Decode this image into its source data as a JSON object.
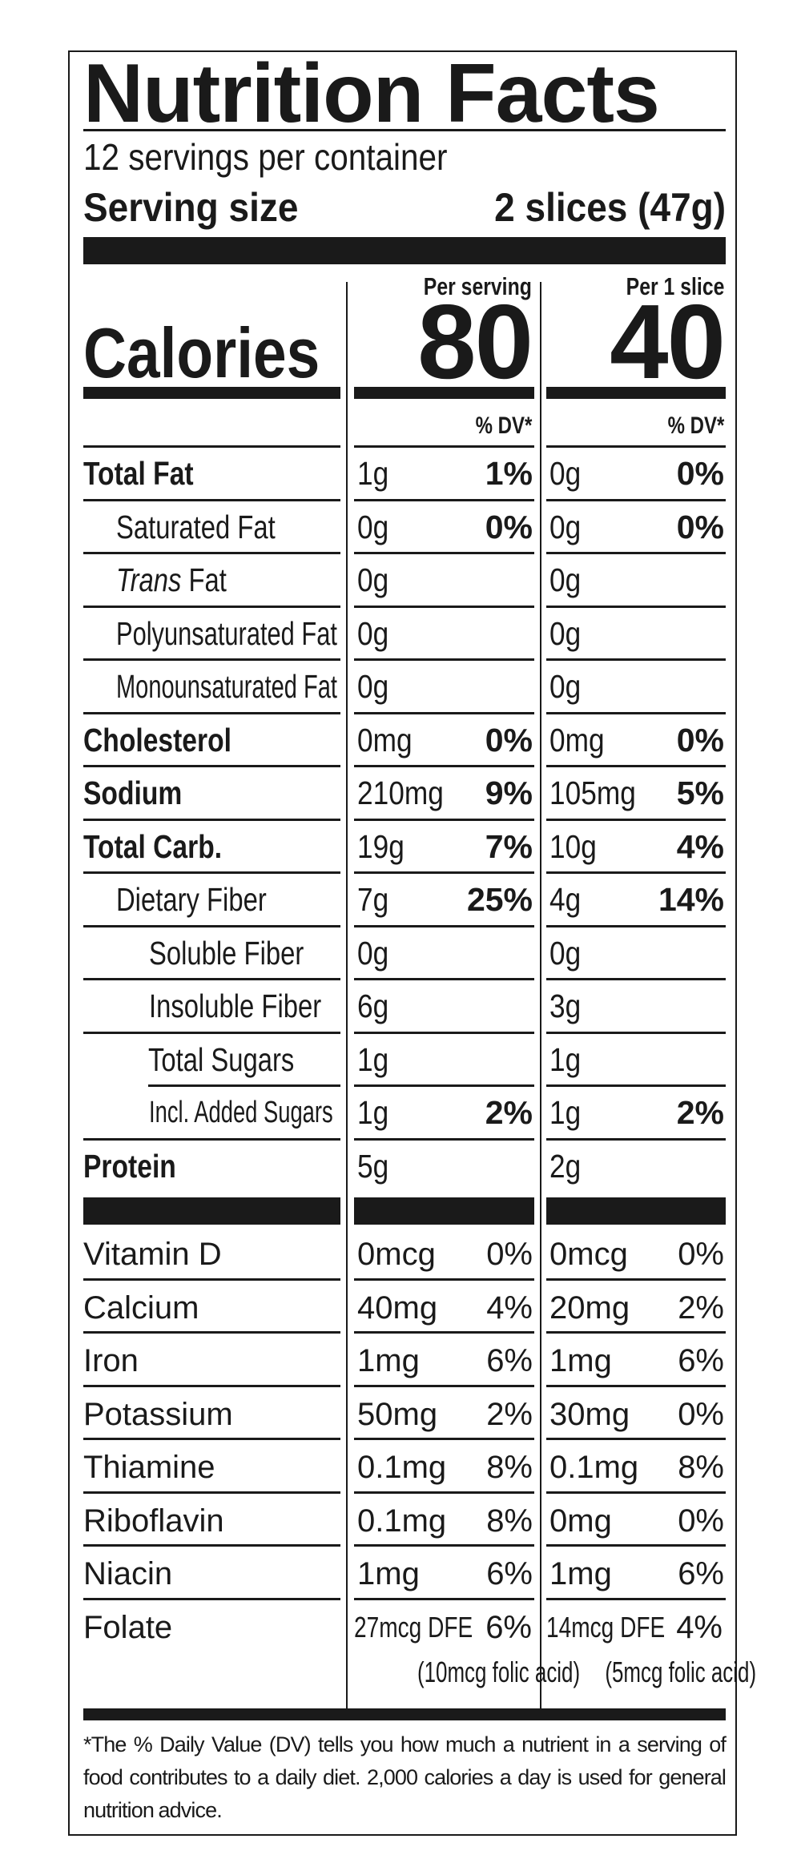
{
  "title": "Nutrition Facts",
  "servings_per_container": "12 servings per container",
  "serving_size": {
    "label": "Serving size",
    "value": "2 slices (47g)"
  },
  "calories": {
    "label": "Calories",
    "per_serving_header": "Per serving",
    "per_slice_header": "Per 1 slice",
    "per_serving": "80",
    "per_slice": "40"
  },
  "dv_header": "% DV*",
  "nutrients": [
    {
      "label": "Total Fat",
      "bold": true,
      "indent": 0,
      "serving": [
        "1g",
        "1%"
      ],
      "slice": [
        "0g",
        "0%"
      ]
    },
    {
      "label": "Saturated Fat",
      "indent": 1,
      "serving": [
        "0g",
        "0%"
      ],
      "slice": [
        "0g",
        "0%"
      ]
    },
    {
      "label_italic": "Trans",
      "label": " Fat",
      "indent": 1,
      "serving": [
        "0g",
        ""
      ],
      "slice": [
        "0g",
        ""
      ]
    },
    {
      "label": "Polyunsaturated Fat",
      "indent": 1,
      "serving": [
        "0g",
        ""
      ],
      "slice": [
        "0g",
        ""
      ]
    },
    {
      "label": "Monounsaturated Fat",
      "indent": 1,
      "serving": [
        "0g",
        ""
      ],
      "slice": [
        "0g",
        ""
      ]
    },
    {
      "label": "Cholesterol",
      "bold": true,
      "indent": 0,
      "serving": [
        "0mg",
        "0%"
      ],
      "slice": [
        "0mg",
        "0%"
      ]
    },
    {
      "label": "Sodium",
      "bold": true,
      "indent": 0,
      "serving": [
        "210mg",
        "9%"
      ],
      "slice": [
        "105mg",
        "5%"
      ]
    },
    {
      "label": "Total Carb.",
      "bold": true,
      "indent": 0,
      "serving": [
        "19g",
        "7%"
      ],
      "slice": [
        "10g",
        "4%"
      ]
    },
    {
      "label": "Dietary Fiber",
      "indent": 1,
      "serving": [
        "7g",
        "25%"
      ],
      "slice": [
        "4g",
        "14%"
      ]
    },
    {
      "label": "Soluble Fiber",
      "indent": 2,
      "serving": [
        "0g",
        ""
      ],
      "slice": [
        "0g",
        ""
      ]
    },
    {
      "label": "Insoluble Fiber",
      "indent": 2,
      "serving": [
        "6g",
        ""
      ],
      "slice": [
        "3g",
        ""
      ]
    },
    {
      "label": "Total Sugars",
      "indent": 1,
      "serving": [
        "1g",
        ""
      ],
      "slice": [
        "1g",
        ""
      ],
      "indented_rule": true
    },
    {
      "label": "Incl. Added Sugars",
      "indent": 2,
      "small": true,
      "serving": [
        "1g",
        "2%"
      ],
      "slice": [
        "1g",
        "2%"
      ]
    },
    {
      "label": "Protein",
      "bold": true,
      "indent": 0,
      "serving": [
        "5g",
        ""
      ],
      "slice": [
        "2g",
        ""
      ],
      "no_rule": true
    }
  ],
  "vitamins": [
    {
      "label": "Vitamin D",
      "serving": [
        "0mcg",
        "0%"
      ],
      "slice": [
        "0mcg",
        "0%"
      ]
    },
    {
      "label": "Calcium",
      "serving": [
        "40mg",
        "4%"
      ],
      "slice": [
        "20mg",
        "2%"
      ]
    },
    {
      "label": "Iron",
      "serving": [
        "1mg",
        "6%"
      ],
      "slice": [
        "1mg",
        "6%"
      ]
    },
    {
      "label": "Potassium",
      "serving": [
        "50mg",
        "2%"
      ],
      "slice": [
        "30mg",
        "0%"
      ]
    },
    {
      "label": "Thiamine",
      "serving": [
        "0.1mg",
        "8%"
      ],
      "slice": [
        "0.1mg",
        "8%"
      ]
    },
    {
      "label": "Riboflavin",
      "serving": [
        "0.1mg",
        "8%"
      ],
      "slice": [
        "0mg",
        "0%"
      ]
    },
    {
      "label": "Niacin",
      "serving": [
        "1mg",
        "6%"
      ],
      "slice": [
        "1mg",
        "6%"
      ]
    }
  ],
  "folate": {
    "label": "Folate",
    "serving": [
      "27mcg DFE",
      "6%",
      "(10mcg folic acid)"
    ],
    "slice": [
      "14mcg DFE",
      "4%",
      "(5mcg folic acid)"
    ]
  },
  "footnote": "*The % Daily Value (DV) tells you how much a nutrient in a serving of food contributes to a daily diet. 2,000 calories a day is used for general nutrition advice.",
  "colors": {
    "ink": "#1a1a1a",
    "background": "#ffffff"
  }
}
